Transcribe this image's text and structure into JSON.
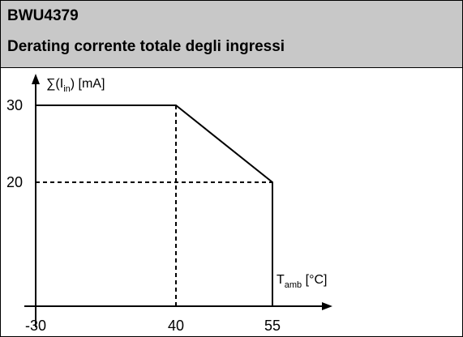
{
  "header": {
    "model": "BWU4379",
    "title": "Derating corrente totale degli ingressi"
  },
  "chart_data": {
    "type": "line",
    "title": "Derating corrente totale degli ingressi",
    "ylabel": {
      "main": "∑(I",
      "sub": "in",
      "tail": ") [mA]"
    },
    "xlabel": {
      "main": "T",
      "sub": "amb",
      "tail": " [°C]"
    },
    "x_ticks": [
      "-30",
      "40",
      "55"
    ],
    "y_ticks": [
      "30",
      "20"
    ],
    "xlim": [
      -30,
      63
    ],
    "ylim": [
      0,
      35
    ],
    "series": [
      {
        "x": [
          -30,
          40,
          55,
          55
        ],
        "y": [
          30,
          30,
          20,
          0
        ]
      }
    ],
    "reference_lines": [
      {
        "orientation": "vertical",
        "x": 40,
        "from": 0,
        "to": 30
      },
      {
        "orientation": "horizontal",
        "y": 20,
        "from": -30,
        "to": 55
      }
    ],
    "colors": {
      "line": "#000000",
      "header_bg": "#c8c8c8"
    }
  }
}
